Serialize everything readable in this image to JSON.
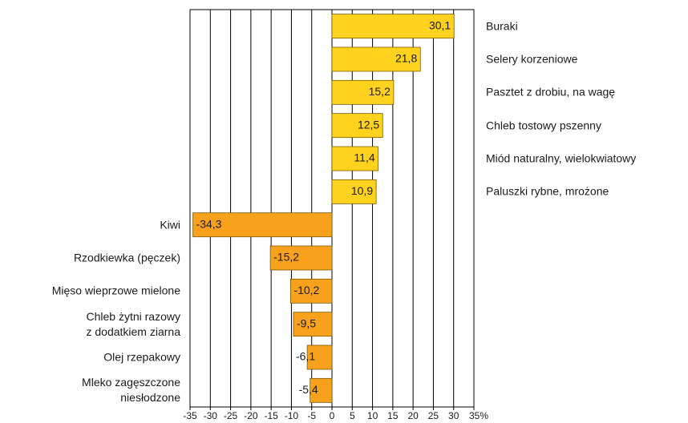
{
  "chart_data": {
    "type": "bar",
    "orientation": "horizontal",
    "categories": [
      "Buraki",
      "Selery korzeniowe",
      "Pasztet z drobiu, na wagę",
      "Chleb tostowy pszenny",
      "Miód naturalny, wielokwiatowy",
      "Paluszki rybne, mrożone",
      "Kiwi",
      "Rzodkiewka (pęczek)",
      "Mięso wieprzowe mielone",
      "Chleb żytni razowy\nz dodatkiem ziarna",
      "Olej rzepakowy",
      "Mleko zagęszczone\nniesłodzone"
    ],
    "values": [
      30.1,
      21.8,
      15.2,
      12.5,
      11.4,
      10.9,
      -34.3,
      -15.2,
      -10.2,
      -9.5,
      -6.1,
      -5.4
    ],
    "value_labels": [
      "30,1",
      "21,8",
      "15,2",
      "12,5",
      "11,4",
      "10,9",
      "-34,3",
      "-15,2",
      "-10,2",
      "-9,5",
      "-6,1",
      "-5,4"
    ],
    "color_positive": "#ffd21f",
    "color_negative": "#f7a11d",
    "xlim": [
      -35,
      35
    ],
    "xticks": [
      -35,
      -30,
      -25,
      -20,
      -15,
      -10,
      -5,
      0,
      5,
      10,
      15,
      20,
      25,
      30,
      {
        "value": 35,
        "label": "35%"
      }
    ],
    "grid": true
  }
}
